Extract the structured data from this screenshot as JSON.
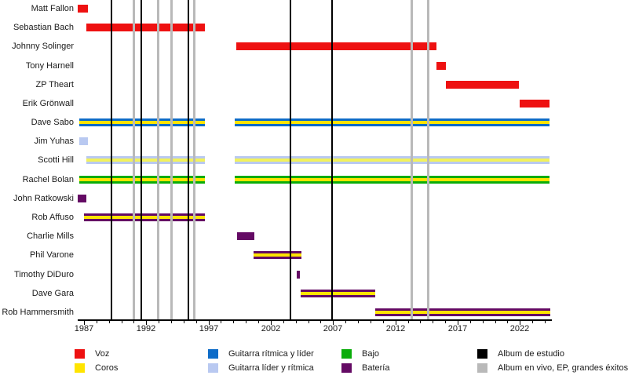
{
  "chart_data": {
    "type": "timeline",
    "description": "Band members tenure timeline (Gantt-style) with album release lines",
    "x_axis": {
      "min": 1986.5,
      "max": 2024.5,
      "tick_every_year": true,
      "labeled_years": [
        1987,
        1992,
        1997,
        2002,
        2007,
        2012,
        2017,
        2022
      ],
      "tick_labels": [
        "1987",
        "1992",
        "1997",
        "2002",
        "2007",
        "2012",
        "2017",
        "2022"
      ]
    },
    "colors": {
      "red": "#ee1111",
      "yellow": "#ffe400",
      "paleyellow": "#f2f25c",
      "blue": "#0e6cc8",
      "lightblue": "#b9c9f1",
      "green": "#0aad0a",
      "purple": "#640a64",
      "black": "#000000",
      "gray": "#b9b9b9",
      "axis": "#000000"
    },
    "members": [
      {
        "name": "Matt Fallon",
        "color": "red",
        "stripe": null,
        "segments": [
          [
            1986.5,
            1987.3
          ]
        ]
      },
      {
        "name": "Sebastian Bach",
        "color": "red",
        "stripe": null,
        "segments": [
          [
            1987.2,
            1996.7
          ]
        ]
      },
      {
        "name": "Johnny Solinger",
        "color": "red",
        "stripe": null,
        "segments": [
          [
            1999.2,
            2015.3
          ]
        ]
      },
      {
        "name": "Tony Harnell",
        "color": "red",
        "stripe": null,
        "segments": [
          [
            2015.3,
            2016.05
          ]
        ]
      },
      {
        "name": "ZP Theart",
        "color": "red",
        "stripe": null,
        "segments": [
          [
            2016.05,
            2021.95
          ]
        ]
      },
      {
        "name": "Erik Grönwall",
        "color": "red",
        "stripe": null,
        "segments": [
          [
            2021.95,
            2024.4
          ]
        ]
      },
      {
        "name": "Dave Sabo",
        "color": "blue",
        "stripe": "yellow",
        "segments": [
          [
            1986.6,
            1996.7
          ],
          [
            1999.1,
            2024.4
          ]
        ]
      },
      {
        "name": "Jim Yuhas",
        "color": "lightblue",
        "stripe": null,
        "segments": [
          [
            1986.6,
            1987.35
          ]
        ]
      },
      {
        "name": "Scotti Hill",
        "color": "lightblue",
        "stripe": "paleyellow",
        "segments": [
          [
            1987.2,
            1996.7
          ],
          [
            1999.1,
            2024.4
          ]
        ]
      },
      {
        "name": "Rachel Bolan",
        "color": "green",
        "stripe": "yellow",
        "segments": [
          [
            1986.6,
            1996.7
          ],
          [
            1999.1,
            2024.4
          ]
        ]
      },
      {
        "name": "John Ratkowski",
        "color": "purple",
        "stripe": null,
        "segments": [
          [
            1986.5,
            1987.2
          ]
        ]
      },
      {
        "name": "Rob Affuso",
        "color": "purple",
        "stripe": "yellow",
        "segments": [
          [
            1987.0,
            1996.7
          ]
        ]
      },
      {
        "name": "Charlie Mills",
        "color": "purple",
        "stripe": null,
        "segments": [
          [
            1999.3,
            2000.7
          ]
        ]
      },
      {
        "name": "Phil Varone",
        "color": "purple",
        "stripe": "yellow",
        "segments": [
          [
            2000.6,
            2004.45
          ]
        ]
      },
      {
        "name": "Timothy DiDuro",
        "color": "purple",
        "stripe": null,
        "segments": [
          [
            2004.1,
            2004.35
          ]
        ]
      },
      {
        "name": "Dave Gara",
        "color": "purple",
        "stripe": "yellow",
        "segments": [
          [
            2004.4,
            2010.4
          ]
        ]
      },
      {
        "name": "Rob Hammersmith",
        "color": "purple",
        "stripe": "yellow",
        "segments": [
          [
            2010.35,
            2024.4
          ]
        ]
      }
    ],
    "release_lines": {
      "studio_album_years": [
        1989.2,
        1991.6,
        1995.4,
        2003.6,
        2006.9
      ],
      "other_release_years": [
        1991.0,
        1992.9,
        1994.0,
        1995.8,
        2013.3,
        2014.6
      ]
    },
    "legend": {
      "columns": [
        {
          "items": [
            {
              "label": "Voz",
              "color": "red"
            },
            {
              "label": "Coros",
              "color": "yellow"
            }
          ]
        },
        {
          "items": [
            {
              "label": "Guitarra rítmica y líder",
              "color": "blue"
            },
            {
              "label": "Guitarra líder y rítmica",
              "color": "lightblue"
            }
          ]
        },
        {
          "items": [
            {
              "label": "Bajo",
              "color": "green"
            },
            {
              "label": "Batería",
              "color": "purple"
            }
          ]
        },
        {
          "items": [
            {
              "label": "Album de estudio",
              "color": "black"
            },
            {
              "label": "Album en vivo, EP, grandes éxitos",
              "color": "gray"
            }
          ]
        }
      ]
    }
  }
}
